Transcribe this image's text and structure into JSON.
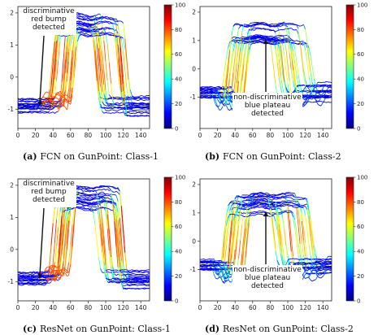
{
  "chart_data": [
    {
      "type": "line",
      "tag": "(a)",
      "caption": "FCN on GunPoint: Class-1",
      "annotation": [
        "discriminative",
        "red bump",
        "detected"
      ],
      "annotation_arrow_x": 25,
      "annotation_arrow_y_data": -0.9,
      "xlim": [
        0,
        150
      ],
      "ylim": [
        -1.6,
        2.2
      ],
      "xticks": [
        0,
        20,
        40,
        60,
        80,
        100,
        120,
        140
      ],
      "yticks": [
        -1,
        0,
        1,
        2
      ],
      "colorbar": {
        "min": 0,
        "max": 100,
        "ticks": [
          0,
          20,
          40,
          60,
          80,
          100
        ]
      },
      "grid": false,
      "series_profile": {
        "baseline": -0.9,
        "plateau": 1.55,
        "rise_range": [
          38,
          65
        ],
        "fall_range": [
          88,
          125
        ],
        "bump": true,
        "dip": false
      }
    },
    {
      "type": "line",
      "tag": "(b)",
      "caption": "FCN on GunPoint: Class-2",
      "annotation": [
        "non-discriminative",
        "blue plateau",
        "detected"
      ],
      "annotation_arrow_x": 75,
      "annotation_arrow_y_data": 1.05,
      "xlim": [
        0,
        150
      ],
      "ylim": [
        -2.1,
        2.2
      ],
      "xticks": [
        0,
        20,
        40,
        60,
        80,
        100,
        120,
        140
      ],
      "yticks": [
        -1,
        0,
        1,
        2
      ],
      "colorbar": {
        "min": 0,
        "max": 100,
        "ticks": [
          0,
          20,
          40,
          60,
          80,
          100
        ]
      },
      "grid": false,
      "series_profile": {
        "baseline": -0.8,
        "plateau": 1.3,
        "rise_range": [
          25,
          55
        ],
        "fall_range": [
          80,
          130
        ],
        "bump": false,
        "dip": true
      }
    },
    {
      "type": "line",
      "tag": "(c)",
      "caption": "ResNet on GunPoint: Class-1",
      "annotation": [
        "discriminative",
        "red bump",
        "detected"
      ],
      "annotation_arrow_x": 25,
      "annotation_arrow_y_data": -0.9,
      "xlim": [
        0,
        150
      ],
      "ylim": [
        -1.6,
        2.2
      ],
      "xticks": [
        0,
        20,
        40,
        60,
        80,
        100,
        120,
        140
      ],
      "yticks": [
        -1,
        0,
        1,
        2
      ],
      "colorbar": {
        "min": 0,
        "max": 100,
        "ticks": [
          0,
          20,
          40,
          60,
          80,
          100
        ]
      },
      "grid": false,
      "series_profile": {
        "baseline": -0.9,
        "plateau": 1.55,
        "rise_range": [
          38,
          65
        ],
        "fall_range": [
          88,
          125
        ],
        "bump": true,
        "dip": false
      }
    },
    {
      "type": "line",
      "tag": "(d)",
      "caption": "ResNet on GunPoint: Class-2",
      "annotation": [
        "non-discriminative",
        "blue plateau",
        "detected"
      ],
      "annotation_arrow_x": 75,
      "annotation_arrow_y_data": 1.05,
      "xlim": [
        0,
        150
      ],
      "ylim": [
        -2.1,
        2.2
      ],
      "xticks": [
        0,
        20,
        40,
        60,
        80,
        100,
        120,
        140
      ],
      "yticks": [
        -1,
        0,
        1,
        2
      ],
      "colorbar": {
        "min": 0,
        "max": 100,
        "ticks": [
          0,
          20,
          40,
          60,
          80,
          100
        ]
      },
      "grid": false,
      "series_profile": {
        "baseline": -0.8,
        "plateau": 1.3,
        "rise_range": [
          25,
          55
        ],
        "fall_range": [
          80,
          130
        ],
        "bump": false,
        "dip": true
      }
    }
  ],
  "colors": {
    "colormap": [
      "#00007f",
      "#0000ff",
      "#007fff",
      "#00ffff",
      "#7fff7f",
      "#ffff00",
      "#ff7f00",
      "#ff0000",
      "#7f0000"
    ]
  }
}
